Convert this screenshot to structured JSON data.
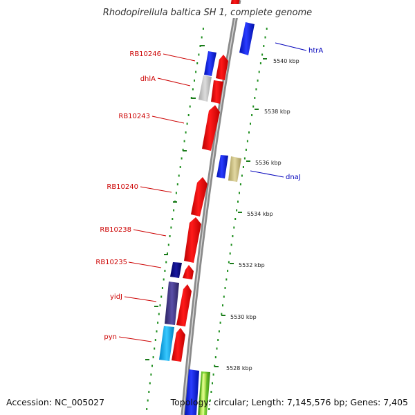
{
  "title": "Rhodopirellula baltica SH 1, complete genome",
  "accession": "Accession: NC_005027",
  "topology": "Topology: circular; Length: 7,145,576 bp; Genes: 7,405",
  "colors": {
    "backbone": "#8a8a8a",
    "tick_dots": "#1f8f1f",
    "label_forward": "#cc0000",
    "label_reverse": "#0000bb"
  },
  "scale_ticks": [
    "5540 kbp",
    "5538 kbp",
    "5536 kbp",
    "5534 kbp",
    "5532 kbp",
    "5530 kbp",
    "5528 kbp"
  ],
  "gene_labels": [
    "RB10246",
    "dhlA",
    "RB10243",
    "RB10240",
    "RB10238",
    "RB10235",
    "yidJ",
    "pyn",
    "htrA",
    "dnaJ"
  ]
}
